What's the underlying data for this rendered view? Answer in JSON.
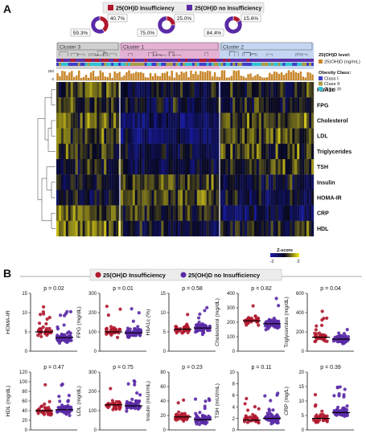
{
  "panel_a": {
    "letter": "A",
    "legend": {
      "insufficiency": "25(OH)D Insufficiency",
      "no_insufficiency": "25(OH)D no Insufficiency"
    },
    "colors": {
      "insufficiency": "#b0182e",
      "no_insufficiency": "#5a2aa6",
      "class_i": "#3b3ec9",
      "class_ii": "#a89b45",
      "class_iii": "#2fc3d6",
      "vitd": "#c8872b"
    },
    "clusters": [
      {
        "label": "Cluster 3",
        "pie_pct_a": "40.7%",
        "pie_pct_b": "59.3%",
        "insufficiency_fraction": 0.407,
        "band_color": "#d0d0d0"
      },
      {
        "label": "Cluster 1",
        "pie_pct_a": "25.0%",
        "pie_pct_b": "75.0%",
        "insufficiency_fraction": 0.25,
        "band_color": "#e5b2d5"
      },
      {
        "label": "Cluster 2",
        "pie_pct_a": "15.6%",
        "pie_pct_b": "84.4%",
        "insufficiency_fraction": 0.156,
        "band_color": "#c4d6f2"
      }
    ],
    "bar_axis": {
      "top": "250",
      "zero": "0"
    },
    "heatmap_rows": [
      "HbA1c",
      "FPG",
      "Cholesterol",
      "LDL",
      "Triglycerides",
      "TSH",
      "Insulin",
      "HOMA-IR",
      "CRP",
      "HDL"
    ],
    "side_legend": {
      "vitd_title": "25(OH)D level:",
      "vitd_item": "25(OH)D (ng/mL)",
      "obesity_title": "Obesity Class:",
      "classes": [
        "Class I",
        "Class II",
        "Class III"
      ]
    },
    "zscore": {
      "title": "Z-score",
      "min_label": "-2",
      "max_label": "2"
    }
  },
  "panel_b": {
    "letter": "B",
    "legend": {
      "insufficiency": "25(OH)D Insufficiency",
      "no_insufficiency": "25(OH)D no Insufficiency"
    }
  },
  "chart_data": [
    {
      "type": "scatter",
      "ylabel": "HOMA-IR",
      "p_value": "p = 0.02",
      "yticks": [
        "0",
        "5",
        "10",
        "15"
      ],
      "ylim": [
        0,
        15
      ],
      "medians": [
        5.0,
        3.5
      ]
    },
    {
      "type": "scatter",
      "ylabel": "FPG (mg/dL)",
      "p_value": "p = 0.01",
      "yticks": [
        "0",
        "100",
        "200",
        "300"
      ],
      "ylim": [
        0,
        300
      ],
      "medians": [
        100,
        95
      ]
    },
    {
      "type": "scatter",
      "ylabel": "HbA1c (%)",
      "p_value": "p = 0.58",
      "yticks": [
        "0",
        "5",
        "10",
        "15"
      ],
      "ylim": [
        0,
        15
      ],
      "medians": [
        5.7,
        6.0
      ]
    },
    {
      "type": "scatter",
      "ylabel": "Cholesterol (mg/dL)",
      "p_value": "p = 0.82",
      "yticks": [
        "0",
        "100",
        "200",
        "300",
        "400"
      ],
      "ylim": [
        0,
        400
      ],
      "medians": [
        210,
        190
      ]
    },
    {
      "type": "scatter",
      "ylabel": "Triglycerides (mg/dL)",
      "p_value": "p = 0.04",
      "yticks": [
        "0",
        "200",
        "400",
        "600"
      ],
      "ylim": [
        0,
        600
      ],
      "medians": [
        145,
        125
      ]
    },
    {
      "type": "scatter",
      "ylabel": "HDL (mg/dL)",
      "p_value": "p = 0.47",
      "yticks": [
        "0",
        "20",
        "40",
        "60",
        "80",
        "100",
        "120"
      ],
      "ylim": [
        0,
        120
      ],
      "medians": [
        40,
        42
      ]
    },
    {
      "type": "scatter",
      "ylabel": "LDL (mg/dL)",
      "p_value": "p = 0.75",
      "yticks": [
        "0",
        "100",
        "200",
        "300"
      ],
      "ylim": [
        0,
        300
      ],
      "medians": [
        130,
        125
      ]
    },
    {
      "type": "scatter",
      "ylabel": "Insulin (mUI/mL)",
      "p_value": "p = 0.23",
      "yticks": [
        "0",
        "20",
        "40",
        "60",
        "80"
      ],
      "ylim": [
        0,
        80
      ],
      "medians": [
        18,
        14
      ]
    },
    {
      "type": "scatter",
      "ylabel": "TSH (mUI/mL)",
      "p_value": "p = 0.11",
      "yticks": [
        "0",
        "2",
        "4",
        "6",
        "8",
        "10"
      ],
      "ylim": [
        0,
        10
      ],
      "medians": [
        1.7,
        2.0
      ]
    },
    {
      "type": "scatter",
      "ylabel": "CRP (mg/L)",
      "p_value": "p = 0.39",
      "yticks": [
        "0",
        "5",
        "10",
        "15",
        "20"
      ],
      "ylim": [
        0,
        20
      ],
      "medians": [
        4,
        6
      ]
    }
  ]
}
